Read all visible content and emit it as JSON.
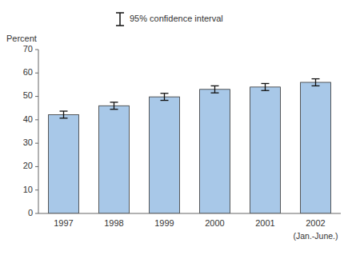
{
  "chart_data": {
    "type": "bar",
    "categories": [
      "1997",
      "1998",
      "1999",
      "2000",
      "2001",
      "2002"
    ],
    "values": [
      42.2,
      46.0,
      49.8,
      53.0,
      54.0,
      56.0
    ],
    "errors": [
      1.5,
      1.5,
      1.5,
      1.5,
      1.5,
      1.5
    ],
    "error_label": "95% confidence interval",
    "legend": "top",
    "color": "#a8c8e8",
    "ylabel": "Percent",
    "annotation": "(Jan.-June.)",
    "ylim": [
      0,
      70
    ],
    "yticks": [
      0,
      10,
      20,
      30,
      40,
      50,
      60,
      70
    ],
    "grid": false
  }
}
